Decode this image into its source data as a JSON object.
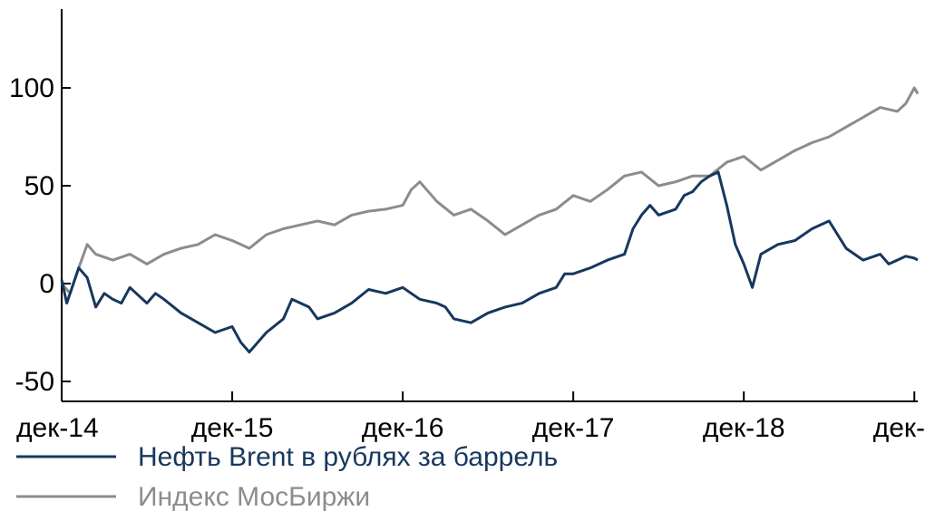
{
  "chart_data": {
    "type": "line",
    "title": "",
    "xlabel": "",
    "ylabel": "",
    "ylim": [
      -55,
      140
    ],
    "yticks": [
      -50,
      0,
      50,
      100
    ],
    "ytick_labels": [
      "-50",
      "0",
      "50",
      "100"
    ],
    "xlim": [
      0,
      5.02
    ],
    "xticks": [
      0,
      1,
      2,
      3,
      4,
      5
    ],
    "xtick_labels": [
      "дек-14",
      "дек-15",
      "дек-16",
      "дек-17",
      "дек-18",
      "дек-"
    ],
    "grid": false,
    "legend_position": "bottom-left",
    "series": [
      {
        "name": "Нефть Brent в рублях за баррель",
        "color": "#17375e",
        "x": [
          0,
          0.03,
          0.1,
          0.15,
          0.2,
          0.25,
          0.3,
          0.35,
          0.4,
          0.5,
          0.55,
          0.6,
          0.7,
          0.8,
          0.9,
          1.0,
          1.05,
          1.1,
          1.15,
          1.2,
          1.3,
          1.35,
          1.45,
          1.5,
          1.6,
          1.7,
          1.8,
          1.9,
          2.0,
          2.05,
          2.1,
          2.2,
          2.25,
          2.3,
          2.4,
          2.5,
          2.6,
          2.7,
          2.8,
          2.9,
          2.95,
          3.0,
          3.1,
          3.2,
          3.3,
          3.35,
          3.4,
          3.45,
          3.5,
          3.6,
          3.65,
          3.7,
          3.75,
          3.8,
          3.85,
          3.9,
          3.95,
          4.0,
          4.05,
          4.1,
          4.2,
          4.3,
          4.4,
          4.5,
          4.6,
          4.65,
          4.7,
          4.8,
          4.85,
          4.9,
          4.95,
          5.0,
          5.02
        ],
        "values": [
          2,
          -10,
          8,
          3,
          -12,
          -5,
          -8,
          -10,
          -2,
          -10,
          -5,
          -8,
          -15,
          -20,
          -25,
          -22,
          -30,
          -35,
          -30,
          -25,
          -18,
          -8,
          -12,
          -18,
          -15,
          -10,
          -3,
          -5,
          -2,
          -5,
          -8,
          -10,
          -12,
          -18,
          -20,
          -15,
          -12,
          -10,
          -5,
          -2,
          5,
          5,
          8,
          12,
          15,
          28,
          35,
          40,
          35,
          38,
          45,
          47,
          52,
          55,
          57,
          40,
          20,
          10,
          -2,
          15,
          20,
          22,
          28,
          32,
          18,
          15,
          12,
          15,
          10,
          12,
          14,
          13,
          12
        ]
      },
      {
        "name": "Индекс МосБиржи",
        "color": "#8c8c8c",
        "x": [
          0,
          0.05,
          0.1,
          0.15,
          0.2,
          0.3,
          0.4,
          0.5,
          0.6,
          0.7,
          0.8,
          0.9,
          1.0,
          1.05,
          1.1,
          1.2,
          1.3,
          1.4,
          1.5,
          1.6,
          1.7,
          1.8,
          1.9,
          2.0,
          2.05,
          2.1,
          2.2,
          2.3,
          2.4,
          2.5,
          2.6,
          2.7,
          2.8,
          2.9,
          3.0,
          3.1,
          3.2,
          3.3,
          3.4,
          3.5,
          3.6,
          3.7,
          3.8,
          3.9,
          4.0,
          4.1,
          4.2,
          4.3,
          4.4,
          4.5,
          4.6,
          4.7,
          4.8,
          4.9,
          4.95,
          5.0,
          5.02
        ],
        "values": [
          0,
          -5,
          8,
          20,
          15,
          12,
          15,
          10,
          15,
          18,
          20,
          25,
          22,
          20,
          18,
          25,
          28,
          30,
          32,
          30,
          35,
          37,
          38,
          40,
          48,
          52,
          42,
          35,
          38,
          32,
          25,
          30,
          35,
          38,
          45,
          42,
          48,
          55,
          57,
          50,
          52,
          55,
          55,
          62,
          65,
          58,
          63,
          68,
          72,
          75,
          80,
          85,
          90,
          88,
          92,
          100,
          97
        ]
      }
    ]
  }
}
